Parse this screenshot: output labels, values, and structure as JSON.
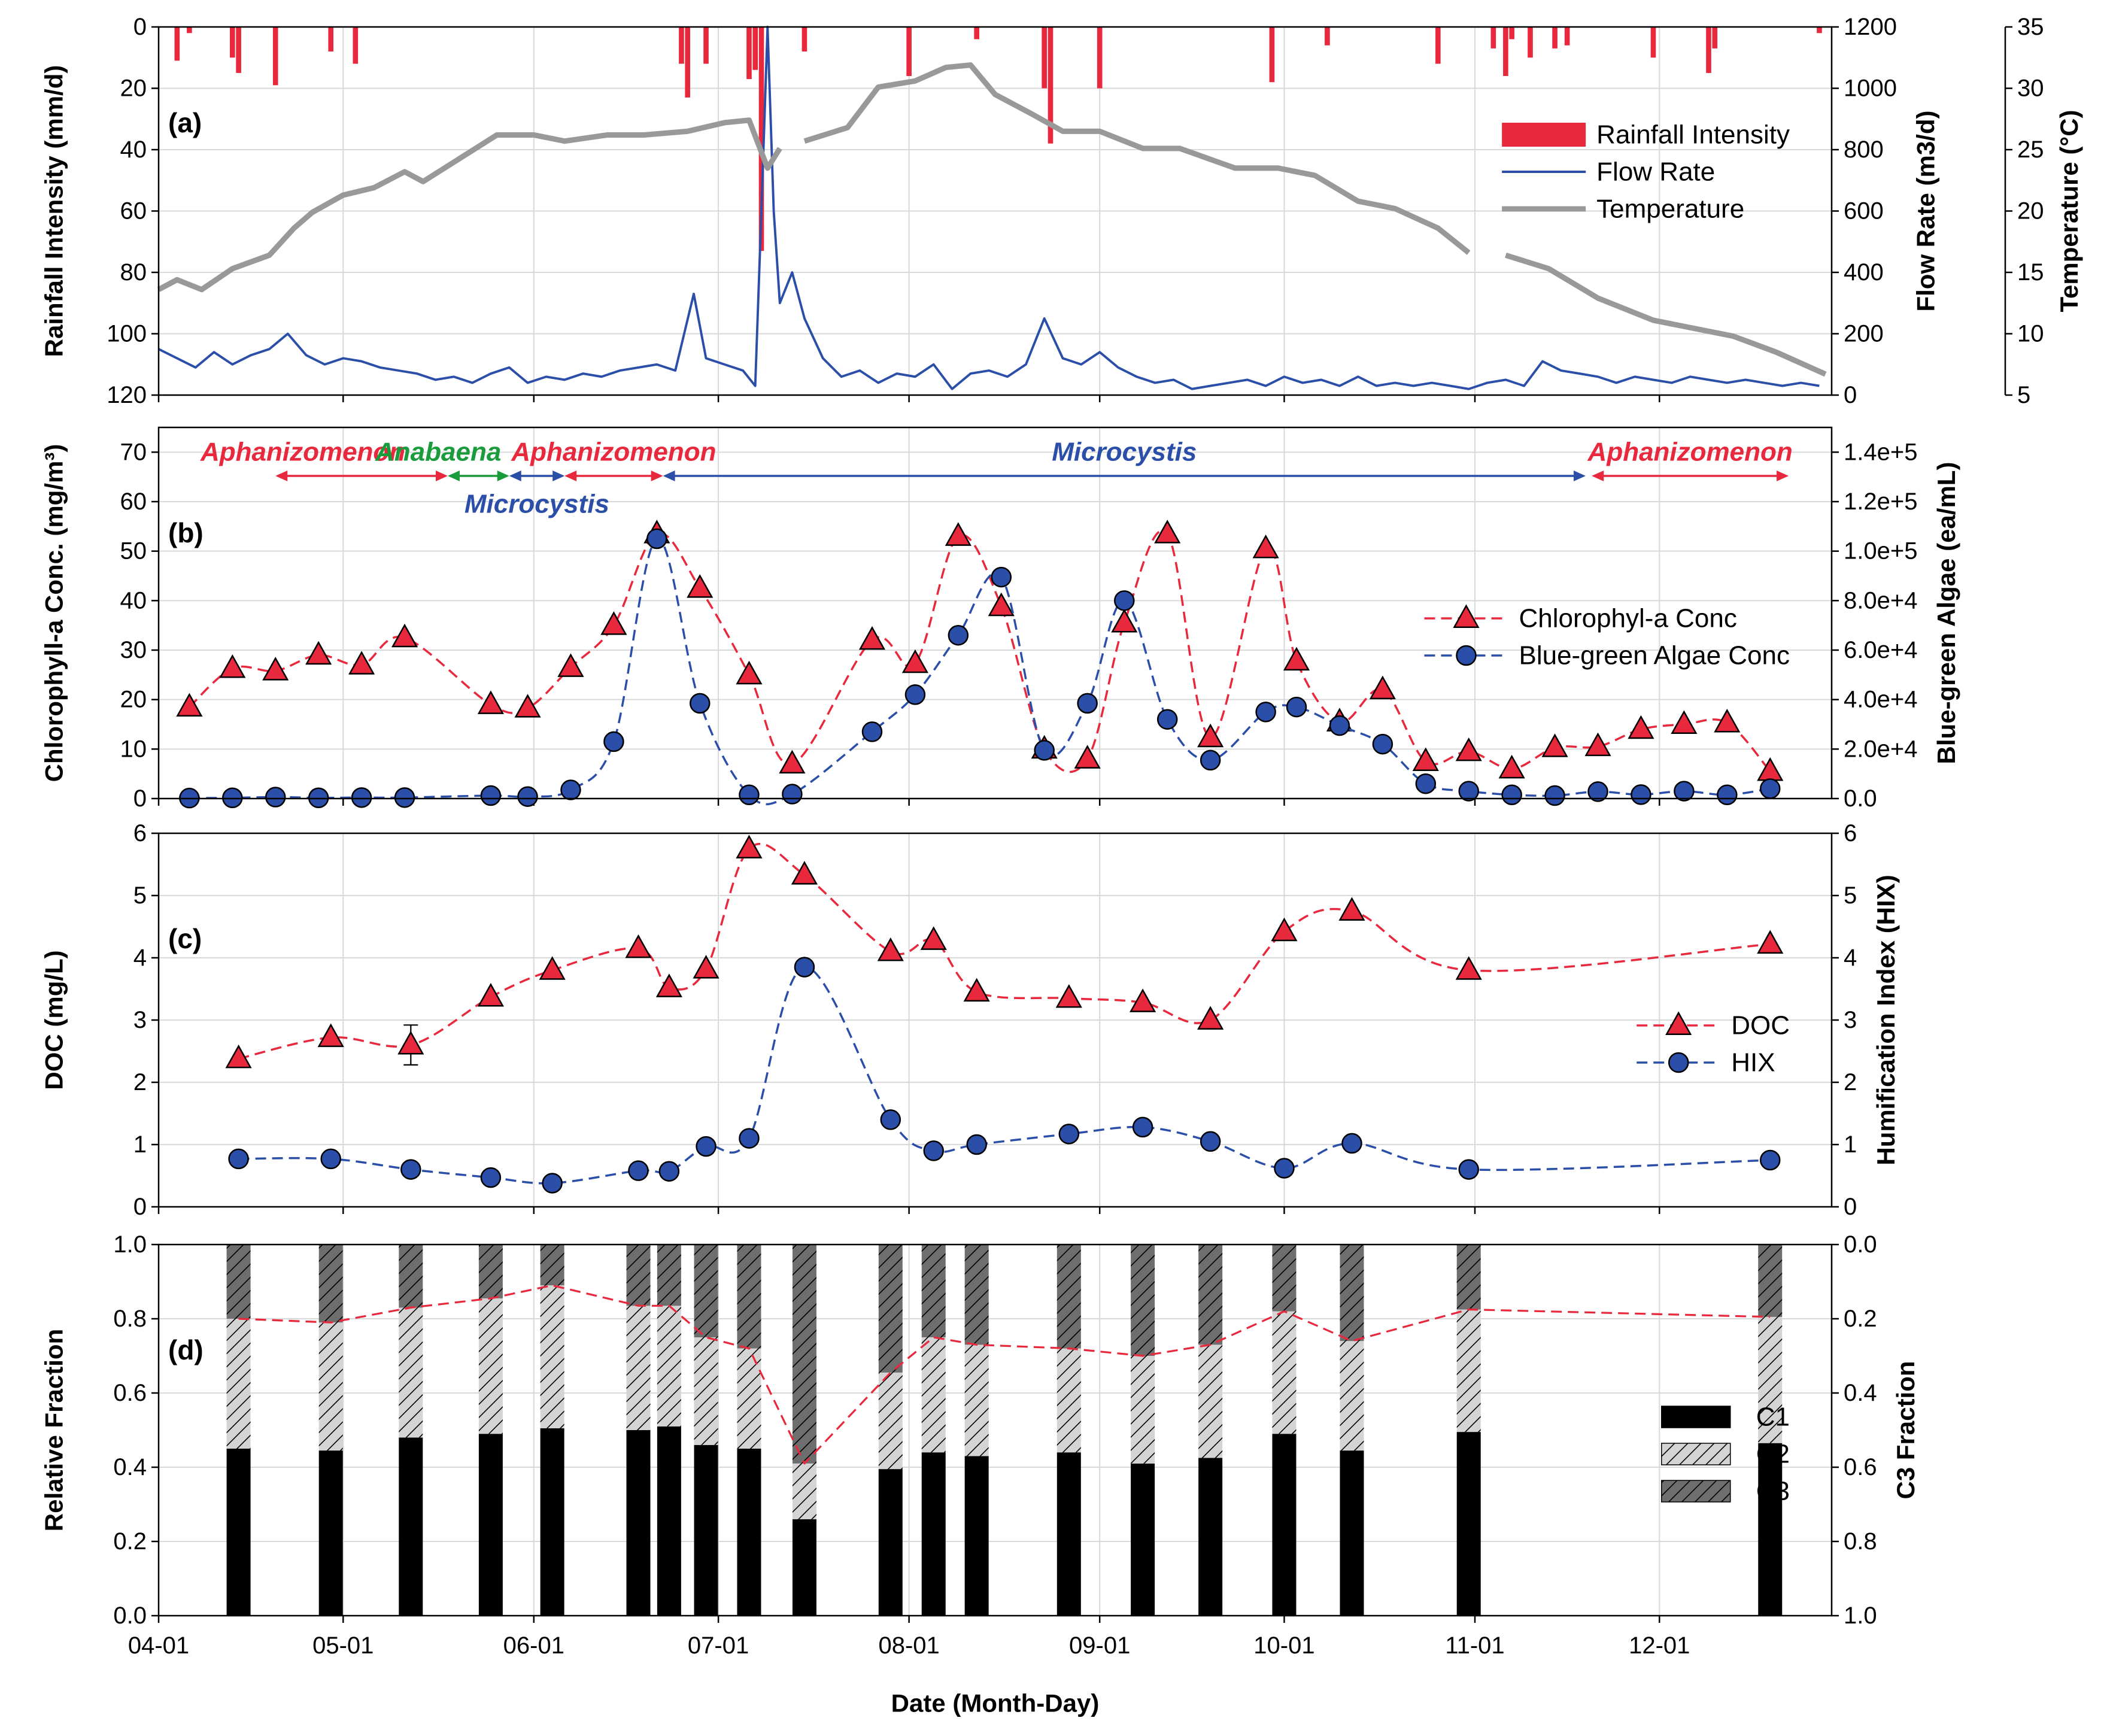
{
  "chart_data": [
    {
      "type": "combo",
      "panel_label": "(a)",
      "ylabel": "Rainfall Intensity (mm/d)",
      "y2label": "Flow Rate (m3/d)",
      "y3label": "Temperature (°C)",
      "xlim": [
        "04-01",
        "12-29"
      ],
      "xticks": [
        "04-01",
        "05-01",
        "06-01",
        "07-01",
        "08-01",
        "09-01",
        "10-01",
        "11-01",
        "12-01"
      ],
      "ylim": [
        0,
        120
      ],
      "yinvert": true,
      "yticks": [
        0,
        20,
        40,
        60,
        80,
        100,
        120
      ],
      "y2lim": [
        0,
        1200
      ],
      "y2ticks": [
        0,
        200,
        400,
        600,
        800,
        1000,
        1200
      ],
      "y3lim": [
        5,
        35
      ],
      "y3ticks": [
        5,
        10,
        15,
        20,
        25,
        30,
        35
      ],
      "grid": true,
      "legend": "upper right",
      "series": [
        {
          "name": "Rainfall Intensity",
          "kind": "bar",
          "color": "#e8283c",
          "x": [
            "04-04",
            "04-06",
            "04-13",
            "04-14",
            "04-20",
            "04-29",
            "05-03",
            "06-25",
            "06-26",
            "06-29",
            "07-06",
            "07-07",
            "07-08",
            "07-15",
            "08-01",
            "08-12",
            "08-23",
            "08-24",
            "09-01",
            "09-29",
            "10-08",
            "10-26",
            "11-04",
            "11-06",
            "11-07",
            "11-10",
            "11-14",
            "11-16",
            "11-30",
            "12-09",
            "12-10",
            "12-27"
          ],
          "values": [
            11,
            2,
            10,
            15,
            19,
            8,
            12,
            12,
            23,
            12,
            17,
            14,
            73,
            8,
            16,
            4,
            20,
            38,
            20,
            18,
            6,
            12,
            7,
            16,
            4,
            10,
            7,
            6,
            10,
            15,
            7,
            2
          ]
        },
        {
          "name": "Flow Rate",
          "kind": "line",
          "axis": "y2",
          "color": "#2b4fa8",
          "linewidth": 1.5,
          "x": [
            "04-01",
            "04-04",
            "04-07",
            "04-10",
            "04-13",
            "04-16",
            "04-19",
            "04-22",
            "04-25",
            "04-28",
            "05-01",
            "05-04",
            "05-07",
            "05-10",
            "05-13",
            "05-16",
            "05-19",
            "05-22",
            "05-25",
            "05-28",
            "05-31",
            "06-03",
            "06-06",
            "06-09",
            "06-12",
            "06-15",
            "06-18",
            "06-21",
            "06-24",
            "06-27",
            "06-29",
            "07-02",
            "07-05",
            "07-07",
            "07-08",
            "07-09",
            "07-10",
            "07-11",
            "07-13",
            "07-15",
            "07-18",
            "07-21",
            "07-24",
            "07-27",
            "07-30",
            "08-02",
            "08-05",
            "08-08",
            "08-11",
            "08-14",
            "08-17",
            "08-20",
            "08-23",
            "08-26",
            "08-29",
            "09-01",
            "09-04",
            "09-07",
            "09-10",
            "09-13",
            "09-16",
            "09-19",
            "09-22",
            "09-25",
            "09-28",
            "10-01",
            "10-04",
            "10-07",
            "10-10",
            "10-13",
            "10-16",
            "10-19",
            "10-22",
            "10-25",
            "10-28",
            "10-31",
            "11-03",
            "11-06",
            "11-09",
            "11-12",
            "11-15",
            "11-18",
            "11-21",
            "11-24",
            "11-27",
            "11-30",
            "12-03",
            "12-06",
            "12-09",
            "12-12",
            "12-15",
            "12-18",
            "12-21",
            "12-24",
            "12-27"
          ],
          "values": [
            150,
            120,
            90,
            140,
            100,
            130,
            150,
            200,
            130,
            100,
            120,
            110,
            90,
            80,
            70,
            50,
            60,
            40,
            70,
            90,
            40,
            60,
            50,
            70,
            60,
            80,
            90,
            100,
            80,
            330,
            120,
            100,
            80,
            30,
            600,
            1200,
            600,
            300,
            400,
            250,
            120,
            60,
            80,
            40,
            70,
            60,
            100,
            20,
            70,
            80,
            60,
            100,
            250,
            120,
            100,
            140,
            90,
            60,
            40,
            50,
            20,
            30,
            40,
            50,
            30,
            60,
            40,
            50,
            30,
            60,
            30,
            40,
            30,
            40,
            30,
            20,
            40,
            50,
            30,
            110,
            80,
            70,
            60,
            40,
            60,
            50,
            40,
            60,
            50,
            40,
            50,
            40,
            30,
            40,
            30
          ]
        },
        {
          "name": "Temperature",
          "kind": "line",
          "axis": "y3",
          "color": "#999999",
          "linewidth": 3.5,
          "x": [
            "04-01",
            "04-04",
            "04-08",
            "04-13",
            "04-19",
            "04-23",
            "04-26",
            "05-01",
            "05-06",
            "05-11",
            "05-14",
            "05-20",
            "05-26",
            "06-01",
            "06-06",
            "06-13",
            "06-19",
            "06-26",
            "07-02",
            "07-06",
            "07-09",
            "07-11",
            "07-13",
            "07-15",
            "07-22",
            "07-27",
            "08-02",
            "08-07",
            "08-11",
            "08-15",
            "08-21",
            "08-26",
            "09-01",
            "09-08",
            "09-14",
            "09-23",
            "09-30",
            "10-06",
            "10-13",
            "10-19",
            "10-26",
            "10-31",
            "11-04",
            "11-06",
            "11-13",
            "11-21",
            "11-30",
            "12-07",
            "12-13",
            "12-20",
            "12-28"
          ],
          "values": [
            13.6,
            14.4,
            13.6,
            15.3,
            16.4,
            18.6,
            19.9,
            21.3,
            21.9,
            23.2,
            22.4,
            24.3,
            26.2,
            26.2,
            25.7,
            26.2,
            26.2,
            26.5,
            27.2,
            27.4,
            23.5,
            25.1,
            null,
            25.7,
            26.8,
            30.1,
            30.6,
            31.7,
            31.9,
            29.5,
            27.9,
            26.5,
            26.5,
            25.1,
            25.1,
            23.5,
            23.5,
            22.9,
            20.8,
            20.2,
            18.6,
            16.6,
            null,
            16.4,
            15.3,
            12.9,
            11.1,
            10.4,
            9.8,
            8.5,
            6.7
          ]
        }
      ]
    },
    {
      "type": "line",
      "panel_label": "(b)",
      "smooth": true,
      "ylabel": "Chlorophyll-a Conc. (mg/m³)",
      "y2label": "Blue-green Algae (ea/mL)",
      "xlim": [
        "04-01",
        "12-29"
      ],
      "xticks": [
        "04-01",
        "05-01",
        "06-01",
        "07-01",
        "08-01",
        "09-01",
        "10-01",
        "11-01",
        "12-01"
      ],
      "ylim": [
        0,
        75
      ],
      "yticks": [
        0,
        10,
        20,
        30,
        40,
        50,
        60,
        70
      ],
      "y2lim": [
        0,
        150000
      ],
      "y2ticks": [
        {
          "value": 0,
          "label": "0.0"
        },
        {
          "value": 20000,
          "label": "2.0e+4"
        },
        {
          "value": 40000,
          "label": "4.0e+4"
        },
        {
          "value": 60000,
          "label": "6.0e+4"
        },
        {
          "value": 80000,
          "label": "8.0e+4"
        },
        {
          "value": 100000,
          "label": "1.0e+5"
        },
        {
          "value": 120000,
          "label": "1.2e+5"
        },
        {
          "value": 140000,
          "label": "1.4e+5"
        }
      ],
      "grid": true,
      "legend": "center right",
      "periods": [
        {
          "label": "Aphanizomenon",
          "color": "#e8283c",
          "start": "04-20",
          "end": "05-18"
        },
        {
          "label": "Anabaena",
          "color": "#1a9b3c",
          "start": "05-18",
          "end": "05-28"
        },
        {
          "label": "Microcystis",
          "color": "#2b4fa8",
          "start": "05-28",
          "end": "06-06",
          "label_side": "below"
        },
        {
          "label": "Aphanizomenon",
          "color": "#e8283c",
          "start": "06-06",
          "end": "06-22"
        },
        {
          "label": "Microcystis",
          "color": "#2b4fa8",
          "start": "06-22",
          "end": "11-19"
        },
        {
          "label": "Aphanizomenon",
          "color": "#e8283c",
          "start": "11-20",
          "end": "12-22"
        }
      ],
      "x": [
        "04-06",
        "04-13",
        "04-20",
        "04-27",
        "05-04",
        "05-11",
        "05-25",
        "05-31",
        "06-07",
        "06-14",
        "06-21",
        "06-28",
        "07-06",
        "07-13",
        "07-26",
        "08-02",
        "08-09",
        "08-16",
        "08-23",
        "08-30",
        "09-05",
        "09-12",
        "09-19",
        "09-28",
        "10-03",
        "10-10",
        "10-17",
        "10-24",
        "10-31",
        "11-07",
        "11-14",
        "11-21",
        "11-28",
        "12-05",
        "12-12",
        "12-19"
      ],
      "series": [
        {
          "name": "Chlorophyl-a Conc",
          "color": "#e8283c",
          "marker": "triangle",
          "values": [
            18.5,
            26.3,
            25.8,
            29,
            27,
            32.5,
            19,
            18.3,
            26.5,
            35,
            53.5,
            42.5,
            25,
            7,
            32,
            27.3,
            53,
            38.8,
            10,
            8,
            35.5,
            53.5,
            12.3,
            50.5,
            27.8,
            15.5,
            22,
            7.5,
            9.5,
            6,
            10.3,
            10.5,
            14,
            15,
            15.3,
            5.5
          ]
        },
        {
          "name": "Blue-green Algae Conc",
          "color": "#2b4fa8",
          "marker": "circle",
          "axis": "y2",
          "values": [
            200,
            300,
            600,
            300,
            400,
            400,
            1200,
            800,
            3500,
            23000,
            105000,
            38500,
            1500,
            1800,
            27000,
            42000,
            66000,
            89500,
            19500,
            38500,
            80000,
            32000,
            15500,
            35000,
            37000,
            29500,
            22000,
            6000,
            3000,
            1500,
            1200,
            2800,
            1600,
            3000,
            1500,
            4000
          ]
        }
      ]
    },
    {
      "type": "line",
      "panel_label": "(c)",
      "smooth": true,
      "ylabel": "DOC (mg/L)",
      "y2label": "Humification Index (HIX)",
      "xlim": [
        "04-01",
        "12-29"
      ],
      "xticks": [
        "04-01",
        "05-01",
        "06-01",
        "07-01",
        "08-01",
        "09-01",
        "10-01",
        "11-01",
        "12-01"
      ],
      "ylim": [
        0,
        6
      ],
      "yticks": [
        0,
        1,
        2,
        3,
        4,
        5,
        6
      ],
      "y2lim": [
        0,
        6
      ],
      "y2ticks": [
        0,
        1,
        2,
        3,
        4,
        5,
        6
      ],
      "grid": true,
      "legend": "center right",
      "x": [
        "04-14",
        "04-29",
        "05-12",
        "05-25",
        "06-04",
        "06-18",
        "06-23",
        "06-29",
        "07-06",
        "07-15",
        "07-29",
        "08-05",
        "08-12",
        "08-27",
        "09-08",
        "09-19",
        "10-01",
        "10-12",
        "10-31",
        "12-19"
      ],
      "series": [
        {
          "name": "DOC",
          "color": "#e8283c",
          "marker": "triangle",
          "values": [
            2.38,
            2.72,
            2.6,
            3.37,
            3.8,
            4.15,
            3.52,
            3.82,
            5.75,
            5.33,
            4.1,
            4.28,
            3.45,
            3.35,
            3.28,
            3.0,
            4.42,
            4.75,
            3.8,
            4.22
          ],
          "errors": [
            null,
            null,
            0.32,
            null,
            null,
            null,
            null,
            null,
            null,
            null,
            null,
            null,
            null,
            null,
            null,
            null,
            null,
            null,
            null,
            null
          ]
        },
        {
          "name": "HIX",
          "color": "#2b4fa8",
          "marker": "circle",
          "axis": "y2",
          "values": [
            0.77,
            0.77,
            0.6,
            0.47,
            0.38,
            0.58,
            0.57,
            0.97,
            1.1,
            3.85,
            1.4,
            0.9,
            1.0,
            1.17,
            1.28,
            1.05,
            0.62,
            1.02,
            0.6,
            0.75
          ]
        }
      ]
    },
    {
      "type": "stacked_bar",
      "panel_label": "(d)",
      "ylabel": "Relative Fraction",
      "y2label": "C3 Fraction",
      "xlabel": "Date (Month-Day)",
      "xlim": [
        "04-01",
        "12-29"
      ],
      "xticks": [
        "04-01",
        "05-01",
        "06-01",
        "07-01",
        "08-01",
        "09-01",
        "10-01",
        "11-01",
        "12-01"
      ],
      "ylim": [
        0,
        1
      ],
      "yticks": [
        {
          "value": 0,
          "label": "0.0"
        },
        {
          "value": 0.2,
          "label": "0.2"
        },
        {
          "value": 0.4,
          "label": "0.4"
        },
        {
          "value": 0.6,
          "label": "0.6"
        },
        {
          "value": 0.8,
          "label": "0.8"
        },
        {
          "value": 1,
          "label": "1.0"
        }
      ],
      "y2lim": [
        0,
        1
      ],
      "y2invert": true,
      "y2ticks": [
        {
          "value": 0,
          "label": "0.0"
        },
        {
          "value": 0.2,
          "label": "0.2"
        },
        {
          "value": 0.4,
          "label": "0.4"
        },
        {
          "value": 0.6,
          "label": "0.6"
        },
        {
          "value": 0.8,
          "label": "0.8"
        },
        {
          "value": 1,
          "label": "1.0"
        }
      ],
      "grid": true,
      "legend": "center right",
      "overlay_line": {
        "color": "#e8283c",
        "axis": "y2"
      },
      "x": [
        "04-14",
        "04-29",
        "05-12",
        "05-25",
        "06-04",
        "06-18",
        "06-23",
        "06-29",
        "07-06",
        "07-15",
        "07-29",
        "08-05",
        "08-12",
        "08-27",
        "09-08",
        "09-19",
        "10-01",
        "10-12",
        "10-31",
        "12-19"
      ],
      "series": [
        {
          "name": "C1",
          "color": "#000000",
          "hatch": false,
          "values": [
            0.45,
            0.445,
            0.48,
            0.49,
            0.505,
            0.5,
            0.51,
            0.46,
            0.45,
            0.26,
            0.395,
            0.44,
            0.43,
            0.44,
            0.41,
            0.425,
            0.49,
            0.445,
            0.495,
            0.465
          ]
        },
        {
          "name": "C2",
          "color": "#d4d4d4",
          "hatch": true,
          "values": [
            0.35,
            0.345,
            0.35,
            0.365,
            0.385,
            0.335,
            0.325,
            0.29,
            0.27,
            0.15,
            0.26,
            0.31,
            0.3,
            0.28,
            0.29,
            0.305,
            0.33,
            0.295,
            0.33,
            0.34
          ]
        },
        {
          "name": "C3",
          "color": "#6e6e6e",
          "hatch": true,
          "values": [
            0.2,
            0.21,
            0.17,
            0.145,
            0.11,
            0.165,
            0.165,
            0.25,
            0.28,
            0.59,
            0.345,
            0.25,
            0.27,
            0.28,
            0.3,
            0.27,
            0.18,
            0.26,
            0.175,
            0.195
          ]
        }
      ]
    }
  ]
}
